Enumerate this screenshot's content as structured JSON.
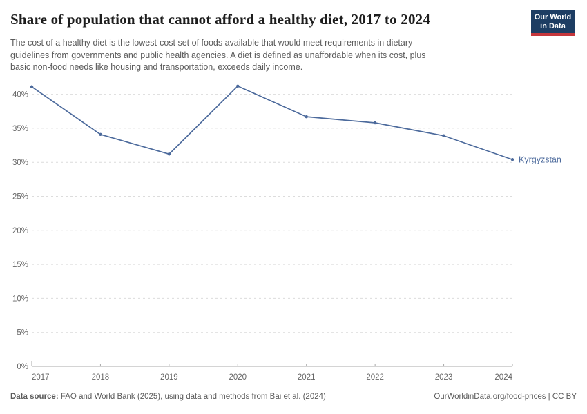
{
  "header": {
    "title": "Share of population that cannot afford a healthy diet, 2017 to 2024",
    "subtitle_lines": [
      "The cost of a healthy diet is the lowest-cost set of foods available that would meet requirements in dietary",
      "guidelines from governments and public health agencies. A diet is defined as unaffordable when its cost, plus",
      "basic non-food needs like housing and transportation, exceeds daily income."
    ]
  },
  "logo": {
    "line1": "Our World",
    "line2": "in Data",
    "bg_color": "#1d3d63",
    "bar_color": "#c5363c"
  },
  "footer": {
    "source_label": "Data source:",
    "source_text": " FAO and World Bank (2025), using data and methods from Bai et al. (2024)",
    "link_label": "OurWorldinData.org/food-prices",
    "license_suffix": " | CC BY"
  },
  "chart_data": {
    "type": "line",
    "title": "Share of population that cannot afford a healthy diet, 2017 to 2024",
    "entity_label": "Kyrgyzstan",
    "x": [
      2017,
      2018,
      2019,
      2020,
      2021,
      2022,
      2023,
      2024
    ],
    "series": [
      {
        "name": "Kyrgyzstan",
        "color": "#4C6A9C",
        "values": [
          41.1,
          34.1,
          31.2,
          41.2,
          36.7,
          35.8,
          33.9,
          30.4
        ]
      }
    ],
    "xlabel": "",
    "ylabel": "",
    "ylim": [
      0,
      42
    ],
    "yticks": [
      0,
      5,
      10,
      15,
      20,
      25,
      30,
      35,
      40
    ],
    "ytick_suffix": "%",
    "grid": "horizontal-dashed",
    "legend": "end-of-line-label",
    "colors": {
      "line": "#4C6A9C",
      "gridline": "#dcdcdc",
      "axis": "#a8a8a8",
      "tick_label": "#666666"
    }
  }
}
